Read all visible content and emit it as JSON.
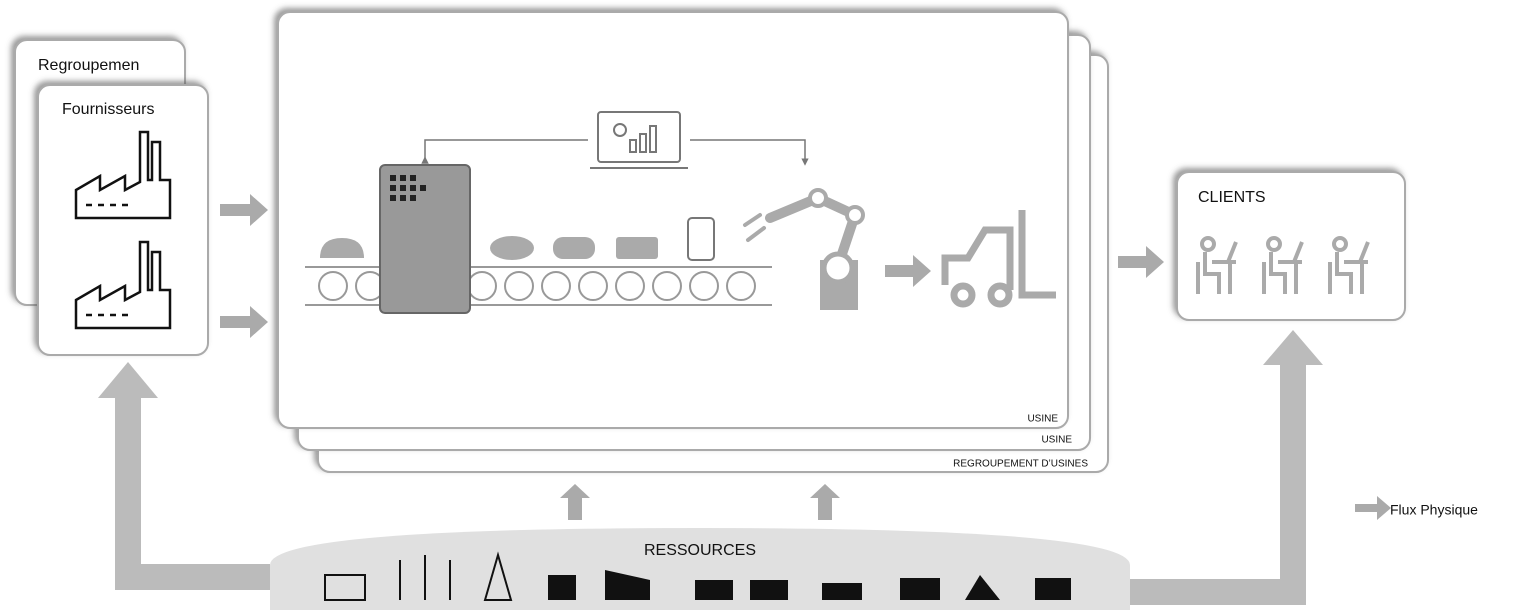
{
  "suppliers": {
    "group_label": "Regroupemen",
    "label": "Fournisseurs"
  },
  "factory": {
    "labels": [
      "USINE",
      "USINE",
      "REGROUPEMENT D’USINES"
    ]
  },
  "clients": {
    "label": "CLIENTS"
  },
  "resources": {
    "label": "RESSOURCES"
  },
  "legend": {
    "label": "Flux Physique"
  }
}
